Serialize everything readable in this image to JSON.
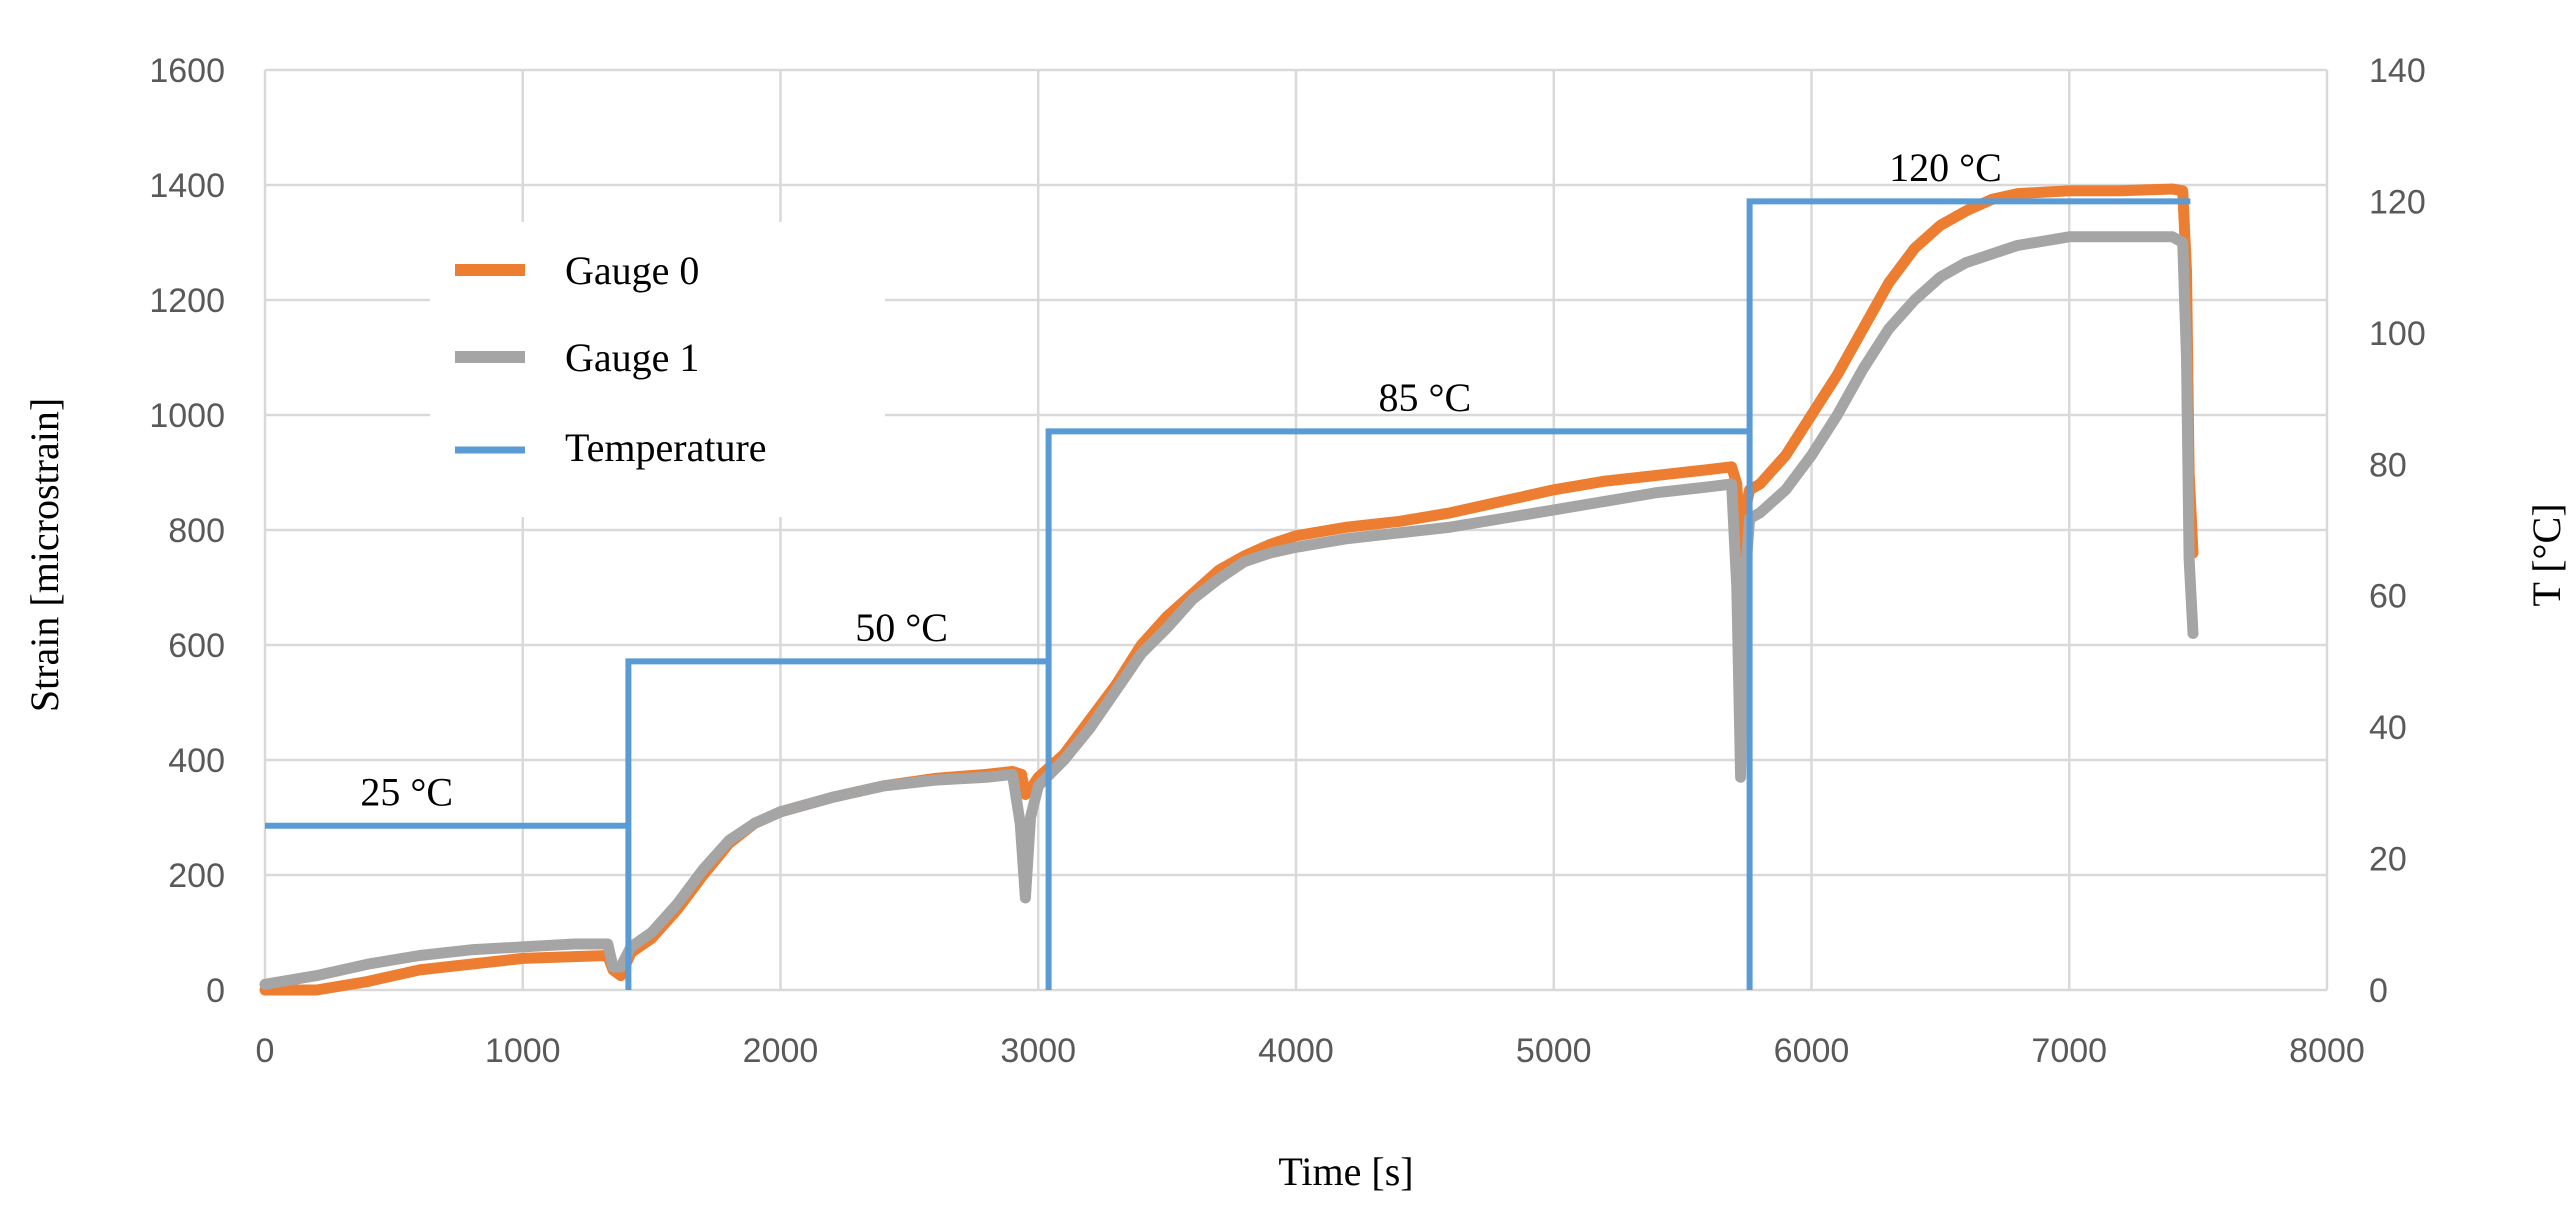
{
  "colors": {
    "gauge0": "#ED7D31",
    "gauge1": "#A5A5A5",
    "temperature": "#5B9BD5",
    "grid": "#D9D9D9"
  },
  "chart_data": {
    "type": "line",
    "title": "",
    "xlabel": "Time [s]",
    "ylabel": "Strain [microstrain]",
    "y2label": "T [°C]",
    "xlim": [
      0,
      8000
    ],
    "ylim": [
      0,
      1600
    ],
    "y2lim": [
      0,
      140
    ],
    "xticks": [
      "0",
      "1000",
      "2000",
      "3000",
      "4000",
      "5000",
      "6000",
      "7000",
      "8000"
    ],
    "yticks": [
      "0",
      "200",
      "400",
      "600",
      "800",
      "1000",
      "1200",
      "1400",
      "1600"
    ],
    "y2ticks": [
      "0",
      "20",
      "40",
      "60",
      "80",
      "100",
      "120",
      "140"
    ],
    "grid": true,
    "legend_position": "upper-left",
    "series": [
      {
        "name": "Gauge 0",
        "axis": "left",
        "x": [
          0,
          200,
          400,
          600,
          800,
          1000,
          1200,
          1330,
          1350,
          1380,
          1420,
          1500,
          1600,
          1700,
          1800,
          1900,
          2000,
          2200,
          2400,
          2600,
          2800,
          2900,
          2935,
          2950,
          2970,
          3000,
          3100,
          3200,
          3300,
          3400,
          3500,
          3600,
          3700,
          3800,
          3900,
          4000,
          4200,
          4400,
          4600,
          4800,
          5000,
          5200,
          5400,
          5600,
          5690,
          5710,
          5725,
          5740,
          5760,
          5800,
          5900,
          6000,
          6100,
          6200,
          6300,
          6400,
          6500,
          6600,
          6700,
          6800,
          7000,
          7200,
          7400,
          7440,
          7455,
          7465,
          7480
        ],
        "values": [
          0,
          0,
          15,
          35,
          45,
          55,
          58,
          60,
          35,
          25,
          65,
          90,
          140,
          200,
          255,
          290,
          310,
          335,
          355,
          368,
          375,
          380,
          375,
          340,
          350,
          370,
          410,
          470,
          530,
          600,
          650,
          690,
          730,
          755,
          775,
          790,
          805,
          815,
          830,
          850,
          870,
          885,
          895,
          905,
          910,
          880,
          760,
          830,
          870,
          880,
          930,
          1000,
          1070,
          1150,
          1230,
          1290,
          1330,
          1355,
          1375,
          1385,
          1390,
          1390,
          1393,
          1390,
          1250,
          900,
          760
        ]
      },
      {
        "name": "Gauge 1",
        "axis": "left",
        "x": [
          0,
          200,
          400,
          600,
          800,
          1000,
          1200,
          1330,
          1350,
          1380,
          1420,
          1500,
          1600,
          1700,
          1800,
          1900,
          2000,
          2200,
          2400,
          2600,
          2800,
          2900,
          2930,
          2950,
          2970,
          3000,
          3100,
          3200,
          3300,
          3400,
          3500,
          3600,
          3700,
          3800,
          3900,
          4000,
          4200,
          4400,
          4600,
          4800,
          5000,
          5200,
          5400,
          5600,
          5690,
          5710,
          5725,
          5740,
          5760,
          5800,
          5900,
          6000,
          6100,
          6200,
          6300,
          6400,
          6500,
          6600,
          6700,
          6800,
          7000,
          7200,
          7400,
          7440,
          7455,
          7465,
          7480
        ],
        "values": [
          10,
          25,
          45,
          60,
          70,
          75,
          80,
          80,
          40,
          40,
          75,
          100,
          150,
          210,
          260,
          290,
          310,
          335,
          355,
          365,
          370,
          375,
          290,
          160,
          300,
          355,
          400,
          455,
          520,
          585,
          630,
          680,
          715,
          745,
          760,
          770,
          785,
          795,
          805,
          820,
          835,
          850,
          865,
          875,
          880,
          700,
          370,
          700,
          820,
          830,
          870,
          930,
          1000,
          1080,
          1150,
          1200,
          1240,
          1265,
          1280,
          1295,
          1310,
          1310,
          1310,
          1300,
          1100,
          750,
          620
        ]
      },
      {
        "name": "Temperature",
        "axis": "right",
        "x": [
          0,
          1410,
          1410,
          1410,
          3040,
          3040,
          3040,
          5760,
          5760,
          5760,
          7470
        ],
        "values": [
          25,
          25,
          0,
          50,
          50,
          0,
          85,
          85,
          0,
          120,
          120
        ]
      }
    ],
    "annotations": [
      {
        "text": "25 °C",
        "x": 550,
        "y2": 27.5
      },
      {
        "text": "50 °C",
        "x": 2470,
        "y2": 52.5
      },
      {
        "text": "85 °C",
        "x": 4500,
        "y2": 87.5
      },
      {
        "text": "120 °C",
        "x": 6520,
        "y2": 122.5
      }
    ]
  }
}
